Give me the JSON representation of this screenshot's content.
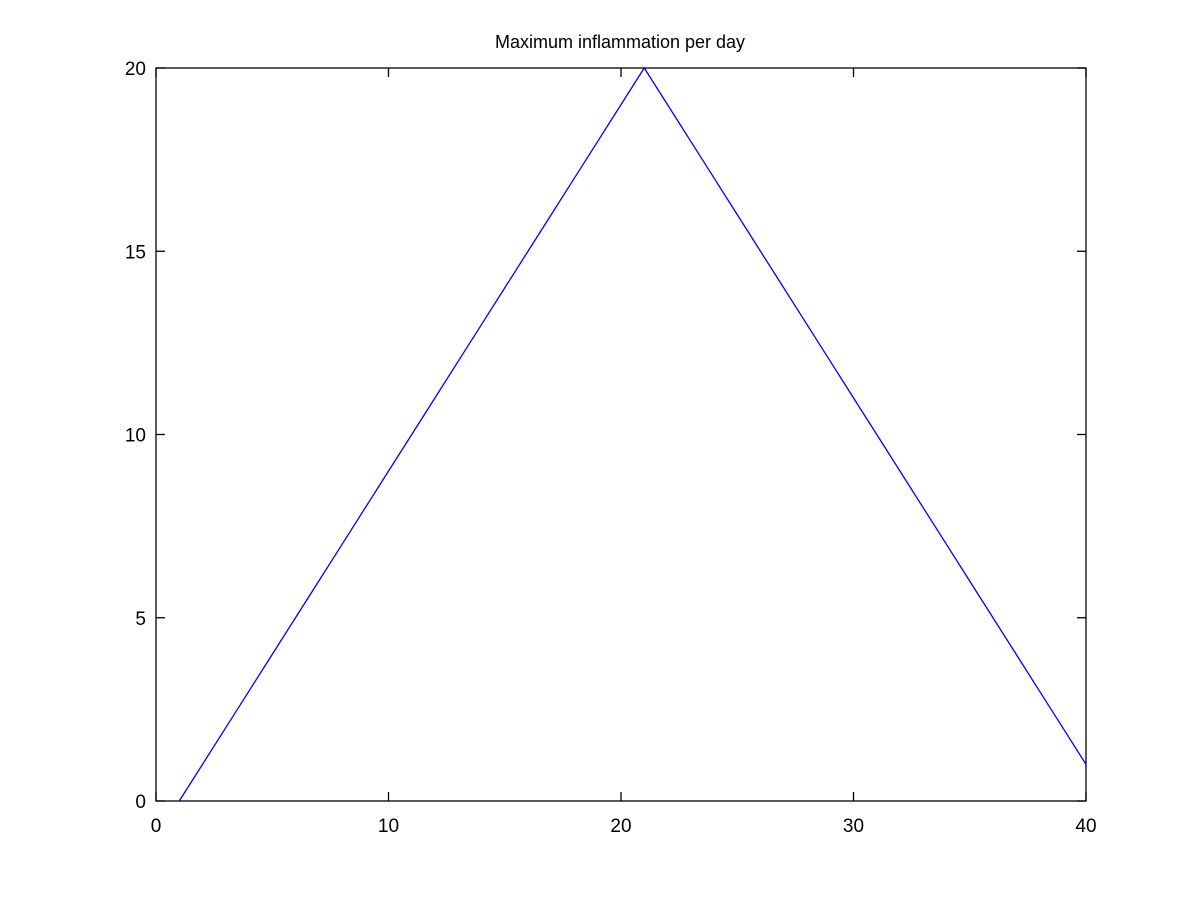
{
  "chart_data": {
    "type": "line",
    "title": "Maximum inflammation per day",
    "xlabel": "",
    "ylabel": "",
    "xlim": [
      0,
      40
    ],
    "ylim": [
      0,
      20
    ],
    "x_ticks": [
      0,
      10,
      20,
      30,
      40
    ],
    "y_ticks": [
      0,
      5,
      10,
      15,
      20
    ],
    "grid": false,
    "series": [
      {
        "color": "#0000ff",
        "x": [
          1,
          2,
          3,
          4,
          5,
          6,
          7,
          8,
          9,
          10,
          11,
          12,
          13,
          14,
          15,
          16,
          17,
          18,
          19,
          20,
          21,
          22,
          23,
          24,
          25,
          26,
          27,
          28,
          29,
          30,
          31,
          32,
          33,
          34,
          35,
          36,
          37,
          38,
          39,
          40
        ],
        "y": [
          0,
          1,
          2,
          3,
          4,
          5,
          6,
          7,
          8,
          9,
          10,
          11,
          12,
          13,
          14,
          15,
          16,
          17,
          18,
          19,
          20,
          19,
          18,
          17,
          16,
          15,
          14,
          13,
          12,
          11,
          10,
          9,
          8,
          7,
          6,
          5,
          4,
          3,
          2,
          1
        ]
      }
    ]
  }
}
